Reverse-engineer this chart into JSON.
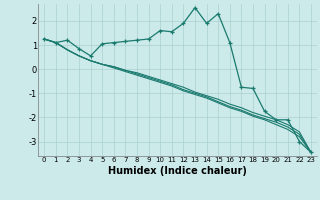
{
  "xlabel": "Humidex (Indice chaleur)",
  "background_color": "#cceaea",
  "line_color": "#1a7a6e",
  "grid_color": "#aacfcf",
  "xlim": [
    -0.5,
    23.5
  ],
  "ylim": [
    -3.6,
    2.7
  ],
  "xticks": [
    0,
    1,
    2,
    3,
    4,
    5,
    6,
    7,
    8,
    9,
    10,
    11,
    12,
    13,
    14,
    15,
    16,
    17,
    18,
    19,
    20,
    21,
    22,
    23
  ],
  "yticks": [
    -3,
    -2,
    -1,
    0,
    1,
    2
  ],
  "series_main": [
    1.25,
    1.1,
    1.2,
    0.85,
    0.55,
    1.05,
    1.1,
    1.15,
    1.2,
    1.25,
    1.6,
    1.55,
    1.9,
    2.55,
    1.9,
    2.3,
    1.1,
    -0.75,
    -0.8,
    -1.75,
    -2.1,
    -2.1,
    -3.0,
    -3.45
  ],
  "series_linear": [
    [
      1.25,
      1.1,
      0.8,
      0.55,
      0.35,
      0.2,
      0.1,
      -0.05,
      -0.15,
      -0.3,
      -0.45,
      -0.6,
      -0.75,
      -0.95,
      -1.1,
      -1.25,
      -1.45,
      -1.6,
      -1.8,
      -1.95,
      -2.1,
      -2.3,
      -2.6,
      -3.45
    ],
    [
      1.25,
      1.1,
      0.8,
      0.55,
      0.35,
      0.2,
      0.1,
      -0.05,
      -0.2,
      -0.35,
      -0.5,
      -0.65,
      -0.85,
      -1.0,
      -1.15,
      -1.35,
      -1.55,
      -1.7,
      -1.9,
      -2.05,
      -2.2,
      -2.4,
      -2.7,
      -3.45
    ],
    [
      1.25,
      1.1,
      0.8,
      0.55,
      0.35,
      0.2,
      0.05,
      -0.1,
      -0.25,
      -0.4,
      -0.55,
      -0.7,
      -0.9,
      -1.05,
      -1.2,
      -1.4,
      -1.6,
      -1.75,
      -1.95,
      -2.1,
      -2.3,
      -2.5,
      -2.8,
      -3.45
    ]
  ],
  "marker_x_main": [
    0,
    1,
    2,
    3,
    4,
    5,
    6,
    7,
    8,
    9,
    10,
    11,
    12,
    13,
    14,
    15,
    16,
    17,
    18,
    19,
    20,
    21,
    22,
    23
  ],
  "xlabel_fontsize": 7,
  "tick_fontsize": 5
}
